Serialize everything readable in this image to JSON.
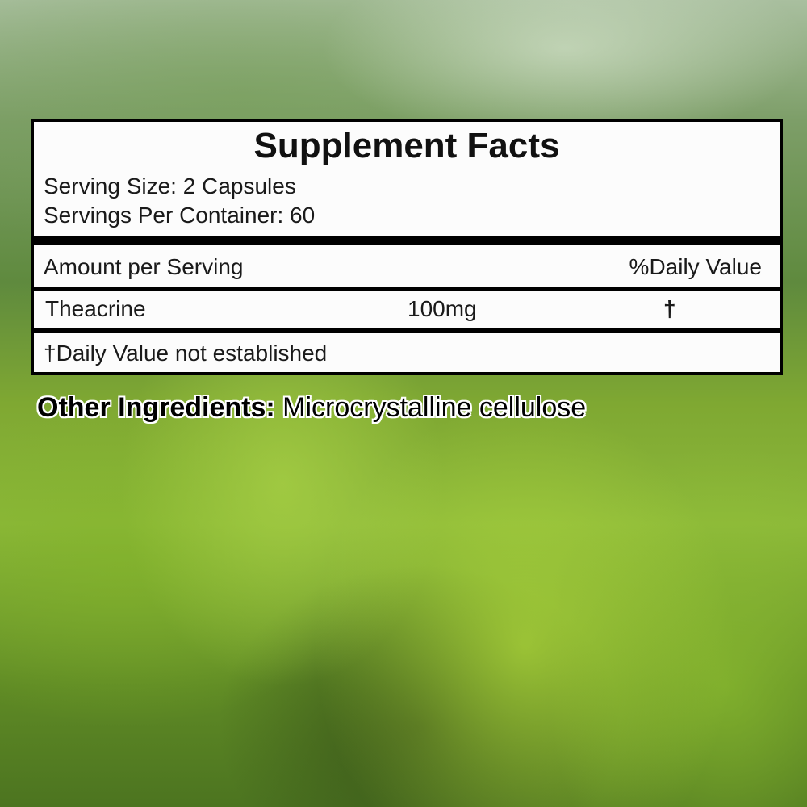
{
  "label": {
    "title": "Supplement Facts",
    "serving_size": "Serving Size: 2 Capsules",
    "servings_per_container": "Servings Per Container: 60",
    "header": {
      "amount": "Amount per Serving",
      "daily_value": "%Daily Value"
    },
    "rows": [
      {
        "name": "Theacrine",
        "amount": "100mg",
        "daily_value": "†"
      }
    ],
    "footnote": "†Daily Value not established"
  },
  "other_ingredients": {
    "label": "Other Ingredients:",
    "value": " Microcrystalline cellulose"
  }
}
